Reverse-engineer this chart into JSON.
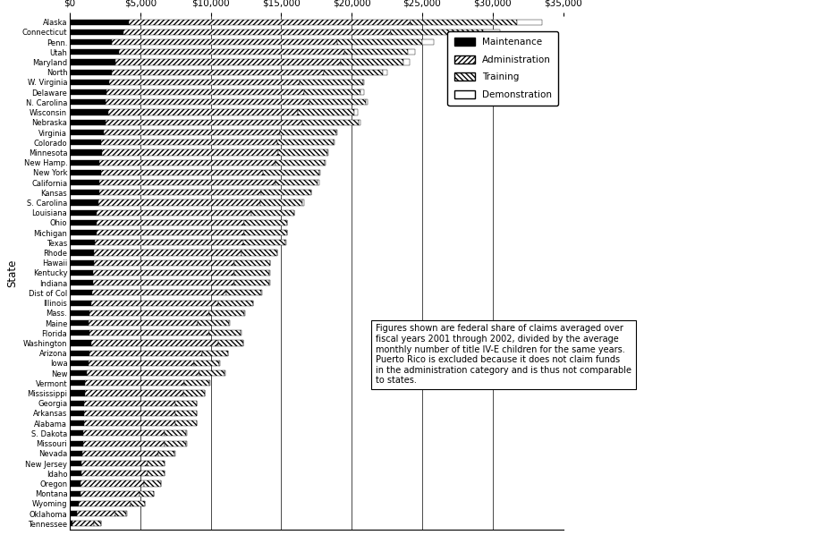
{
  "states": [
    "Alaska",
    "Connecticut",
    "Penn.",
    "Utah",
    "Maryland",
    "North",
    "W. Virginia",
    "Delaware",
    "N. Carolina",
    "Wisconsin",
    "Nebraska",
    "Virginia",
    "Colorado",
    "Minnesota",
    "New Hamp.",
    "New York",
    "California",
    "Kansas",
    "S. Carolina",
    "Louisiana",
    "Ohio",
    "Michigan",
    "Texas",
    "Rhode",
    "Hawaii",
    "Kentucky",
    "Indiana",
    "Dist of Col",
    "Illinois",
    "Mass.",
    "Maine",
    "Florida",
    "Washington",
    "Arizona",
    "Iowa",
    "New",
    "Vermont",
    "Mississippi",
    "Georgia",
    "Arkansas",
    "Alabama",
    "S. Dakota",
    "Missouri",
    "Nevada",
    "New Jersey",
    "Idaho",
    "Oregon",
    "Montana",
    "Wyoming",
    "Oklahoma",
    "Tennessee"
  ],
  "maintenance": [
    4200,
    3800,
    3000,
    3500,
    3200,
    3000,
    2800,
    2600,
    2500,
    2700,
    2500,
    2400,
    2200,
    2300,
    2100,
    2200,
    2100,
    2100,
    2000,
    1900,
    1900,
    1900,
    1800,
    1700,
    1700,
    1650,
    1650,
    1600,
    1500,
    1400,
    1300,
    1400,
    1500,
    1400,
    1300,
    1200,
    1100,
    1050,
    1000,
    1000,
    1000,
    950,
    950,
    850,
    800,
    800,
    750,
    750,
    600,
    500,
    200
  ],
  "administration": [
    20000,
    19000,
    16000,
    16000,
    16000,
    15000,
    13500,
    14000,
    14500,
    13500,
    14000,
    12500,
    12500,
    12500,
    12500,
    11500,
    12500,
    11500,
    11500,
    11000,
    10500,
    10500,
    10500,
    10500,
    10000,
    10000,
    10000,
    9500,
    9000,
    8500,
    7800,
    8500,
    9000,
    8000,
    7500,
    8000,
    7000,
    7000,
    6500,
    6500,
    6500,
    5800,
    5800,
    5400,
    4700,
    4700,
    4500,
    4200,
    3700,
    2700,
    1500
  ],
  "training": [
    7500,
    6500,
    6000,
    4500,
    4500,
    4200,
    4500,
    4000,
    4000,
    4000,
    4000,
    4000,
    4000,
    3500,
    3500,
    4000,
    3000,
    3500,
    3000,
    3000,
    3000,
    3000,
    3000,
    2500,
    2500,
    2500,
    2500,
    2500,
    2500,
    2500,
    2200,
    2200,
    1800,
    1800,
    1800,
    1800,
    1800,
    1500,
    1500,
    1500,
    1500,
    1500,
    1500,
    1200,
    1200,
    1200,
    1200,
    1000,
    1000,
    800,
    500
  ],
  "demonstration": [
    1800,
    1200,
    800,
    500,
    400,
    350,
    100,
    300,
    100,
    200,
    100,
    100,
    100,
    50,
    50,
    50,
    100,
    50,
    100,
    30,
    30,
    30,
    30,
    30,
    30,
    30,
    30,
    30,
    0,
    30,
    30,
    50,
    30,
    30,
    30,
    30,
    30,
    30,
    30,
    30,
    30,
    30,
    30,
    30,
    50,
    30,
    30,
    30,
    30,
    30,
    30
  ],
  "xlim": [
    0,
    35000
  ],
  "xticks": [
    0,
    5000,
    10000,
    15000,
    20000,
    25000,
    30000,
    35000
  ],
  "ylabel": "State",
  "note": "Figures shown are federal share of claims averaged over\nfiscal years 2001 through 2002, divided by the average\nmonthly number of title IV-E children for the same years.\nPuerto Rico is excluded because it does not claim funds\nin the administration category and is thus not comparable\nto states.",
  "background_color": "#ffffff",
  "fig_width": 9.19,
  "fig_height": 5.98
}
